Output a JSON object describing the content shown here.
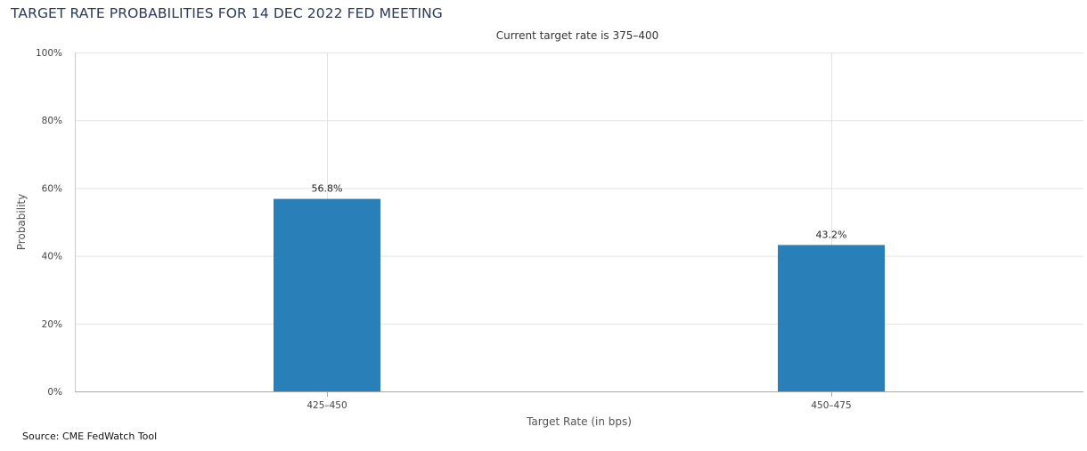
{
  "title": "TARGET RATE PROBABILITIES FOR 14 DEC 2022 FED MEETING",
  "subtitle": "Current target rate is 375–400",
  "source": "Source: CME FedWatch Tool",
  "colors": {
    "bar": "#2980b9",
    "grid": "#e3e3e3",
    "axis": "#aaaaaa"
  },
  "chart_data": {
    "type": "bar",
    "categories": [
      "425–450",
      "450–475"
    ],
    "values": [
      56.8,
      43.2
    ],
    "data_labels": [
      "56.8%",
      "43.2%"
    ],
    "title": "TARGET RATE PROBABILITIES FOR 14 DEC 2022 FED MEETING",
    "subtitle": "Current target rate is 375–400",
    "xlabel": "Target Rate (in bps)",
    "ylabel": "Probability",
    "ylim": [
      0,
      100
    ],
    "yticks": [
      0,
      20,
      40,
      60,
      80,
      100
    ],
    "ytick_labels": [
      "0%",
      "20%",
      "40%",
      "60%",
      "80%",
      "100%"
    ],
    "grid": true
  }
}
